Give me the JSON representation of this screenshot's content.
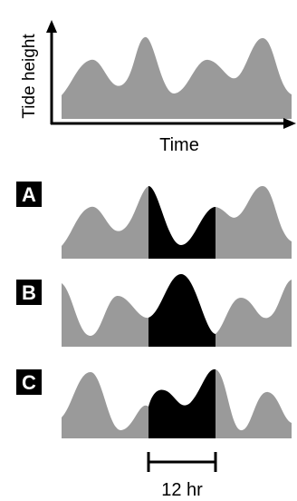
{
  "axes": {
    "ylabel": "Tide height",
    "xlabel": "Time"
  },
  "panels": [
    {
      "letter": "A"
    },
    {
      "letter": "B"
    },
    {
      "letter": "C"
    }
  ],
  "scale_bar": {
    "label": "12 hr"
  },
  "colors": {
    "wave_fill": "#9a9a9a",
    "highlight_fill": "#000000",
    "label_box": "#000000",
    "axis": "#000000"
  }
}
